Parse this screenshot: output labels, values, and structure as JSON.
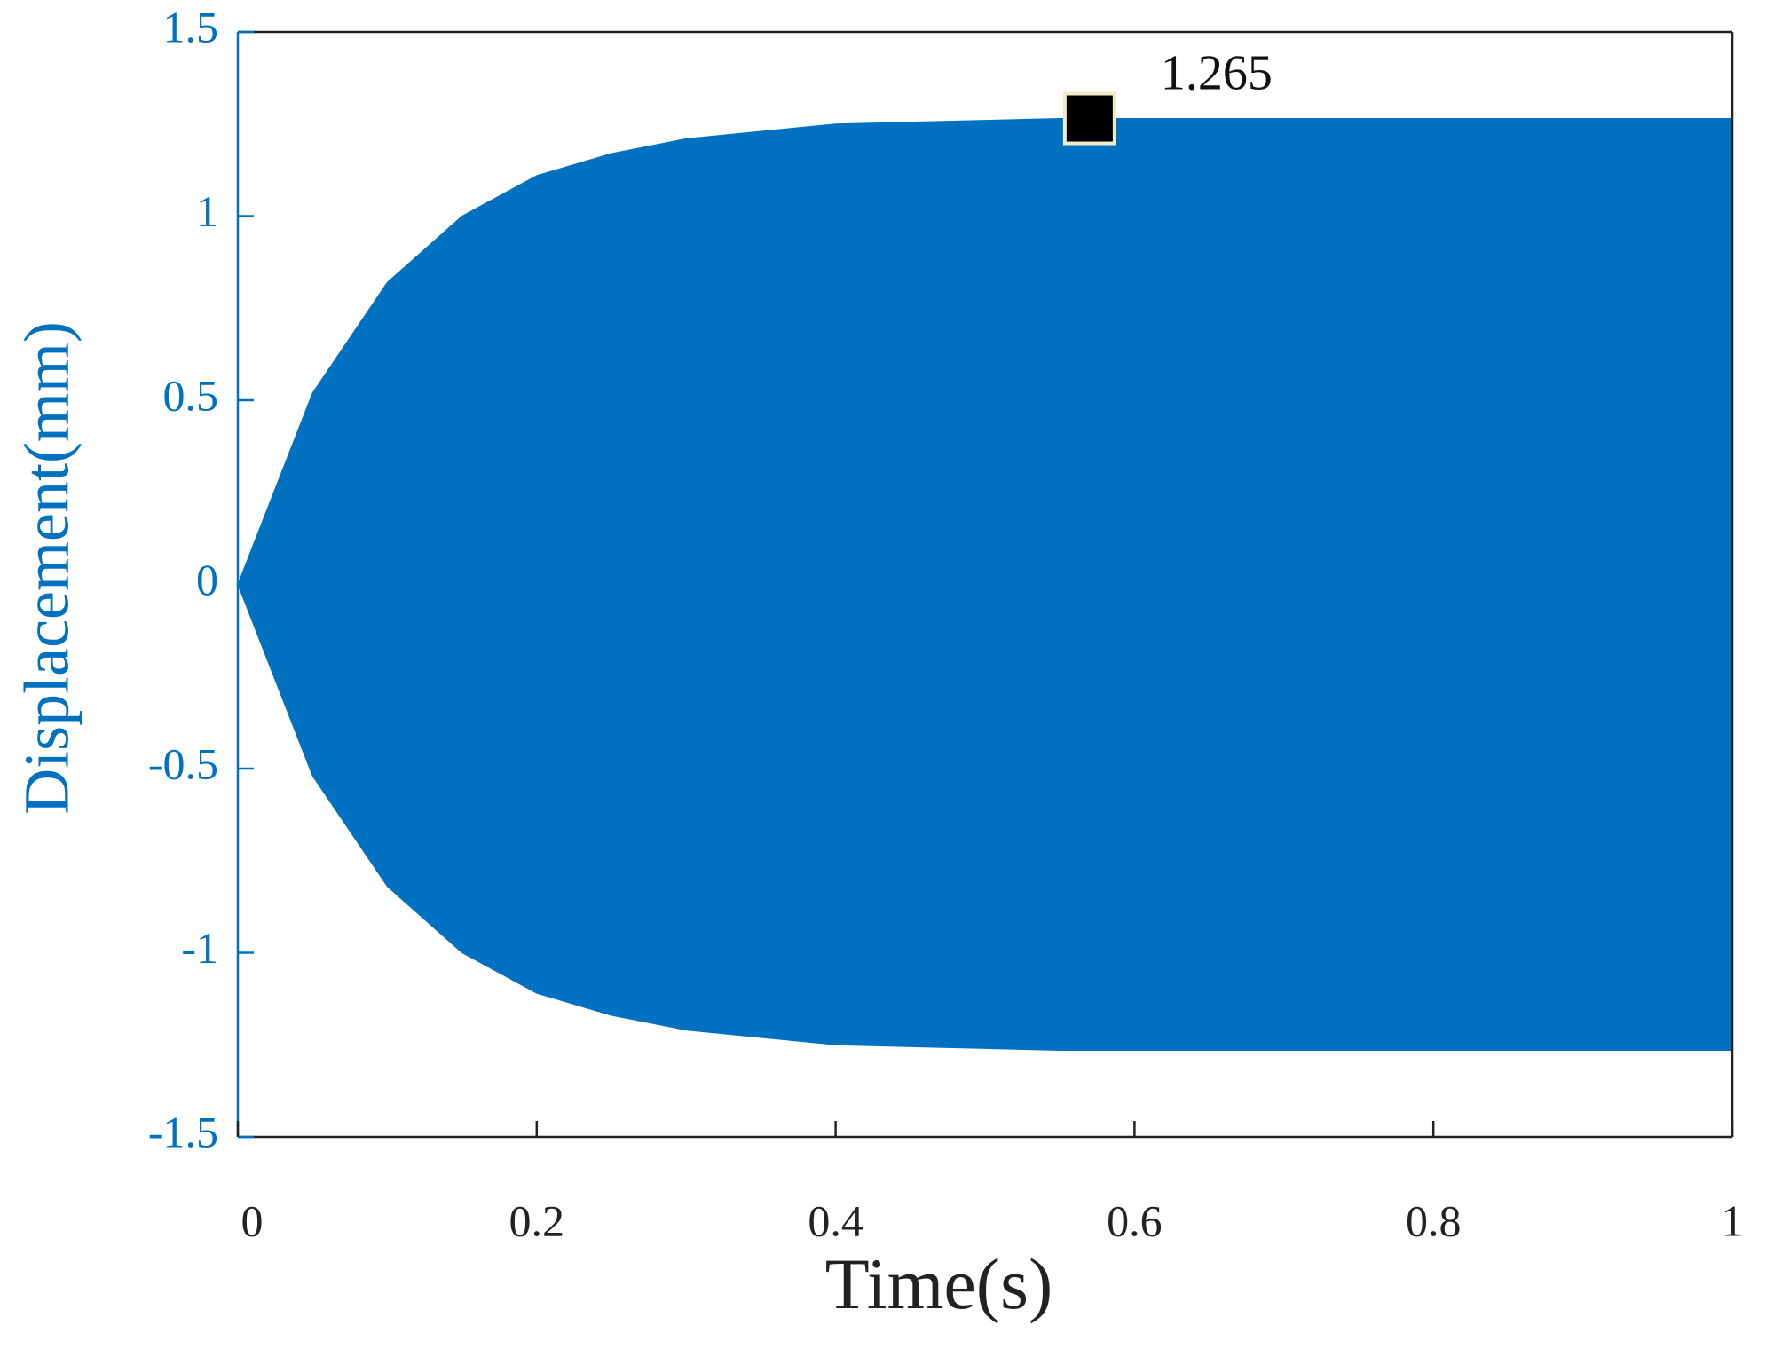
{
  "chart_data": {
    "type": "envelope",
    "xlabel": "Time(s)",
    "ylabel": "Displacement(mm)",
    "x": [
      0,
      0.05,
      0.1,
      0.15,
      0.2,
      0.25,
      0.3,
      0.35,
      0.4,
      0.45,
      0.5,
      0.55,
      0.6,
      0.65,
      0.7,
      0.75,
      0.8,
      0.85,
      0.9,
      0.95,
      1
    ],
    "upper": [
      0,
      0.52,
      0.82,
      1.0,
      1.11,
      1.17,
      1.21,
      1.23,
      1.25,
      1.255,
      1.26,
      1.265,
      1.265,
      1.265,
      1.265,
      1.265,
      1.265,
      1.265,
      1.265,
      1.265,
      1.265
    ],
    "lower": [
      0,
      -0.52,
      -0.82,
      -1.0,
      -1.11,
      -1.17,
      -1.21,
      -1.23,
      -1.25,
      -1.255,
      -1.26,
      -1.265,
      -1.265,
      -1.265,
      -1.265,
      -1.265,
      -1.265,
      -1.265,
      -1.265,
      -1.265,
      -1.265
    ],
    "color": "#0070c0",
    "annotation": {
      "x": 0.57,
      "value": 1.265
    },
    "xlim": [
      0,
      1
    ],
    "xticks": [
      0,
      0.2,
      0.4,
      0.6,
      0.8,
      1
    ],
    "ylim": [
      -1.5,
      1.5
    ],
    "yticks": [
      -1.5,
      -1,
      -0.5,
      0,
      0.5,
      1,
      1.5
    ]
  }
}
